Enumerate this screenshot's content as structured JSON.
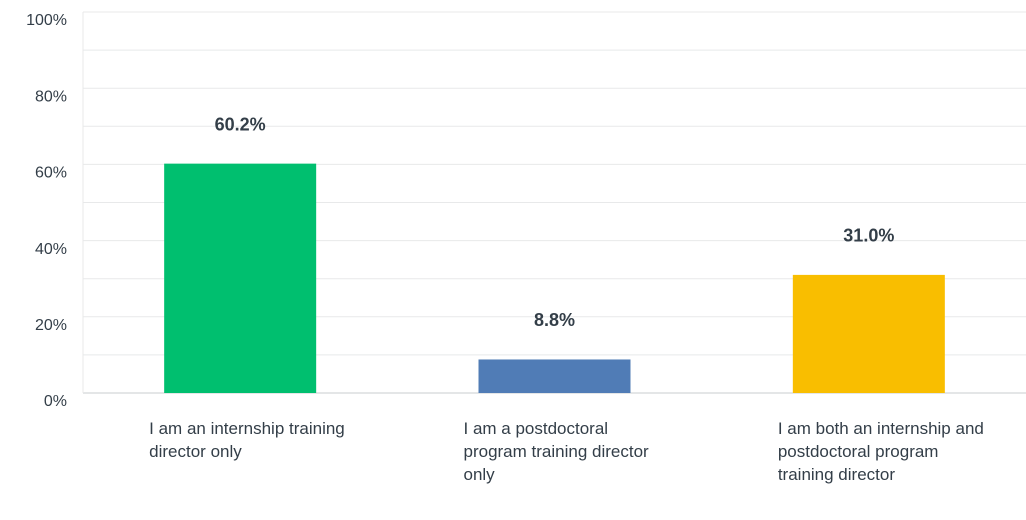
{
  "chart_data": {
    "type": "bar",
    "categories": [
      "I am an internship training director only",
      "I am a postdoctoral program training director only",
      "I am both an internship and postdoctoral program training director"
    ],
    "values": [
      60.2,
      8.8,
      31.0
    ],
    "value_labels": [
      "60.2%",
      "8.8%",
      "31.0%"
    ],
    "colors": [
      "#00bf6f",
      "#507cb6",
      "#f9be00"
    ],
    "ylim": [
      0,
      100
    ],
    "yticks": [
      {
        "value": 0,
        "label": "0%"
      },
      {
        "value": 20,
        "label": "20%"
      },
      {
        "value": 40,
        "label": "40%"
      },
      {
        "value": 60,
        "label": "60%"
      },
      {
        "value": 80,
        "label": "80%"
      },
      {
        "value": 100,
        "label": "100%"
      }
    ],
    "minor_yticks": [
      10,
      30,
      50,
      70,
      90
    ],
    "grid": true
  }
}
